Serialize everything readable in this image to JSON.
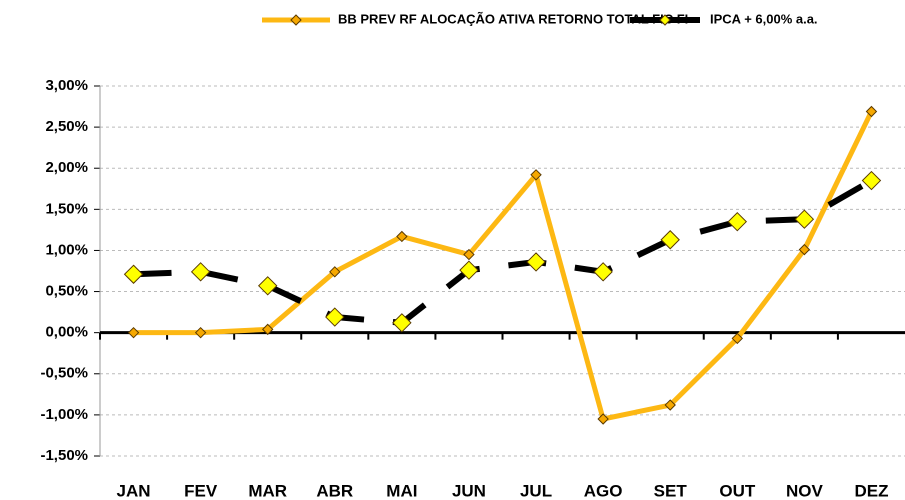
{
  "chart_data": {
    "type": "line",
    "categories": [
      "JAN",
      "FEV",
      "MAR",
      "ABR",
      "MAI",
      "JUN",
      "JUL",
      "AGO",
      "SET",
      "OUT",
      "NOV",
      "DEZ"
    ],
    "series": [
      {
        "name": "BB PREV RF ALOCAÇÃO ATIVA RETORNO TOTAL FIC FI",
        "color": "#FDB813",
        "marker_color": "#F6A800",
        "values": [
          0.0,
          0.0,
          0.04,
          0.74,
          1.17,
          0.95,
          1.92,
          -1.05,
          -0.88,
          -0.07,
          1.01,
          2.69
        ]
      },
      {
        "name": "IPCA + 6,00% a.a.",
        "color": "#000000",
        "marker_color": "#FFFF00",
        "values": [
          0.71,
          0.74,
          0.57,
          0.19,
          0.12,
          0.76,
          0.86,
          0.74,
          1.13,
          1.35,
          1.38,
          1.85
        ]
      }
    ],
    "ylim": [
      -1.5,
      3.0
    ],
    "yticks": [
      {
        "value": -1.5,
        "label": "-1,50%"
      },
      {
        "value": -1.0,
        "label": "-1,00%"
      },
      {
        "value": -0.5,
        "label": "-0,50%"
      },
      {
        "value": 0,
        "label": "0,00%"
      },
      {
        "value": 0.5,
        "label": "0,50%"
      },
      {
        "value": 1.0,
        "label": "1,00%"
      },
      {
        "value": 1.5,
        "label": "1,50%"
      },
      {
        "value": 2.0,
        "label": "2,00%"
      },
      {
        "value": 2.5,
        "label": "2,50%"
      },
      {
        "value": 3.0,
        "label": "3,00%"
      }
    ],
    "grid": true
  }
}
